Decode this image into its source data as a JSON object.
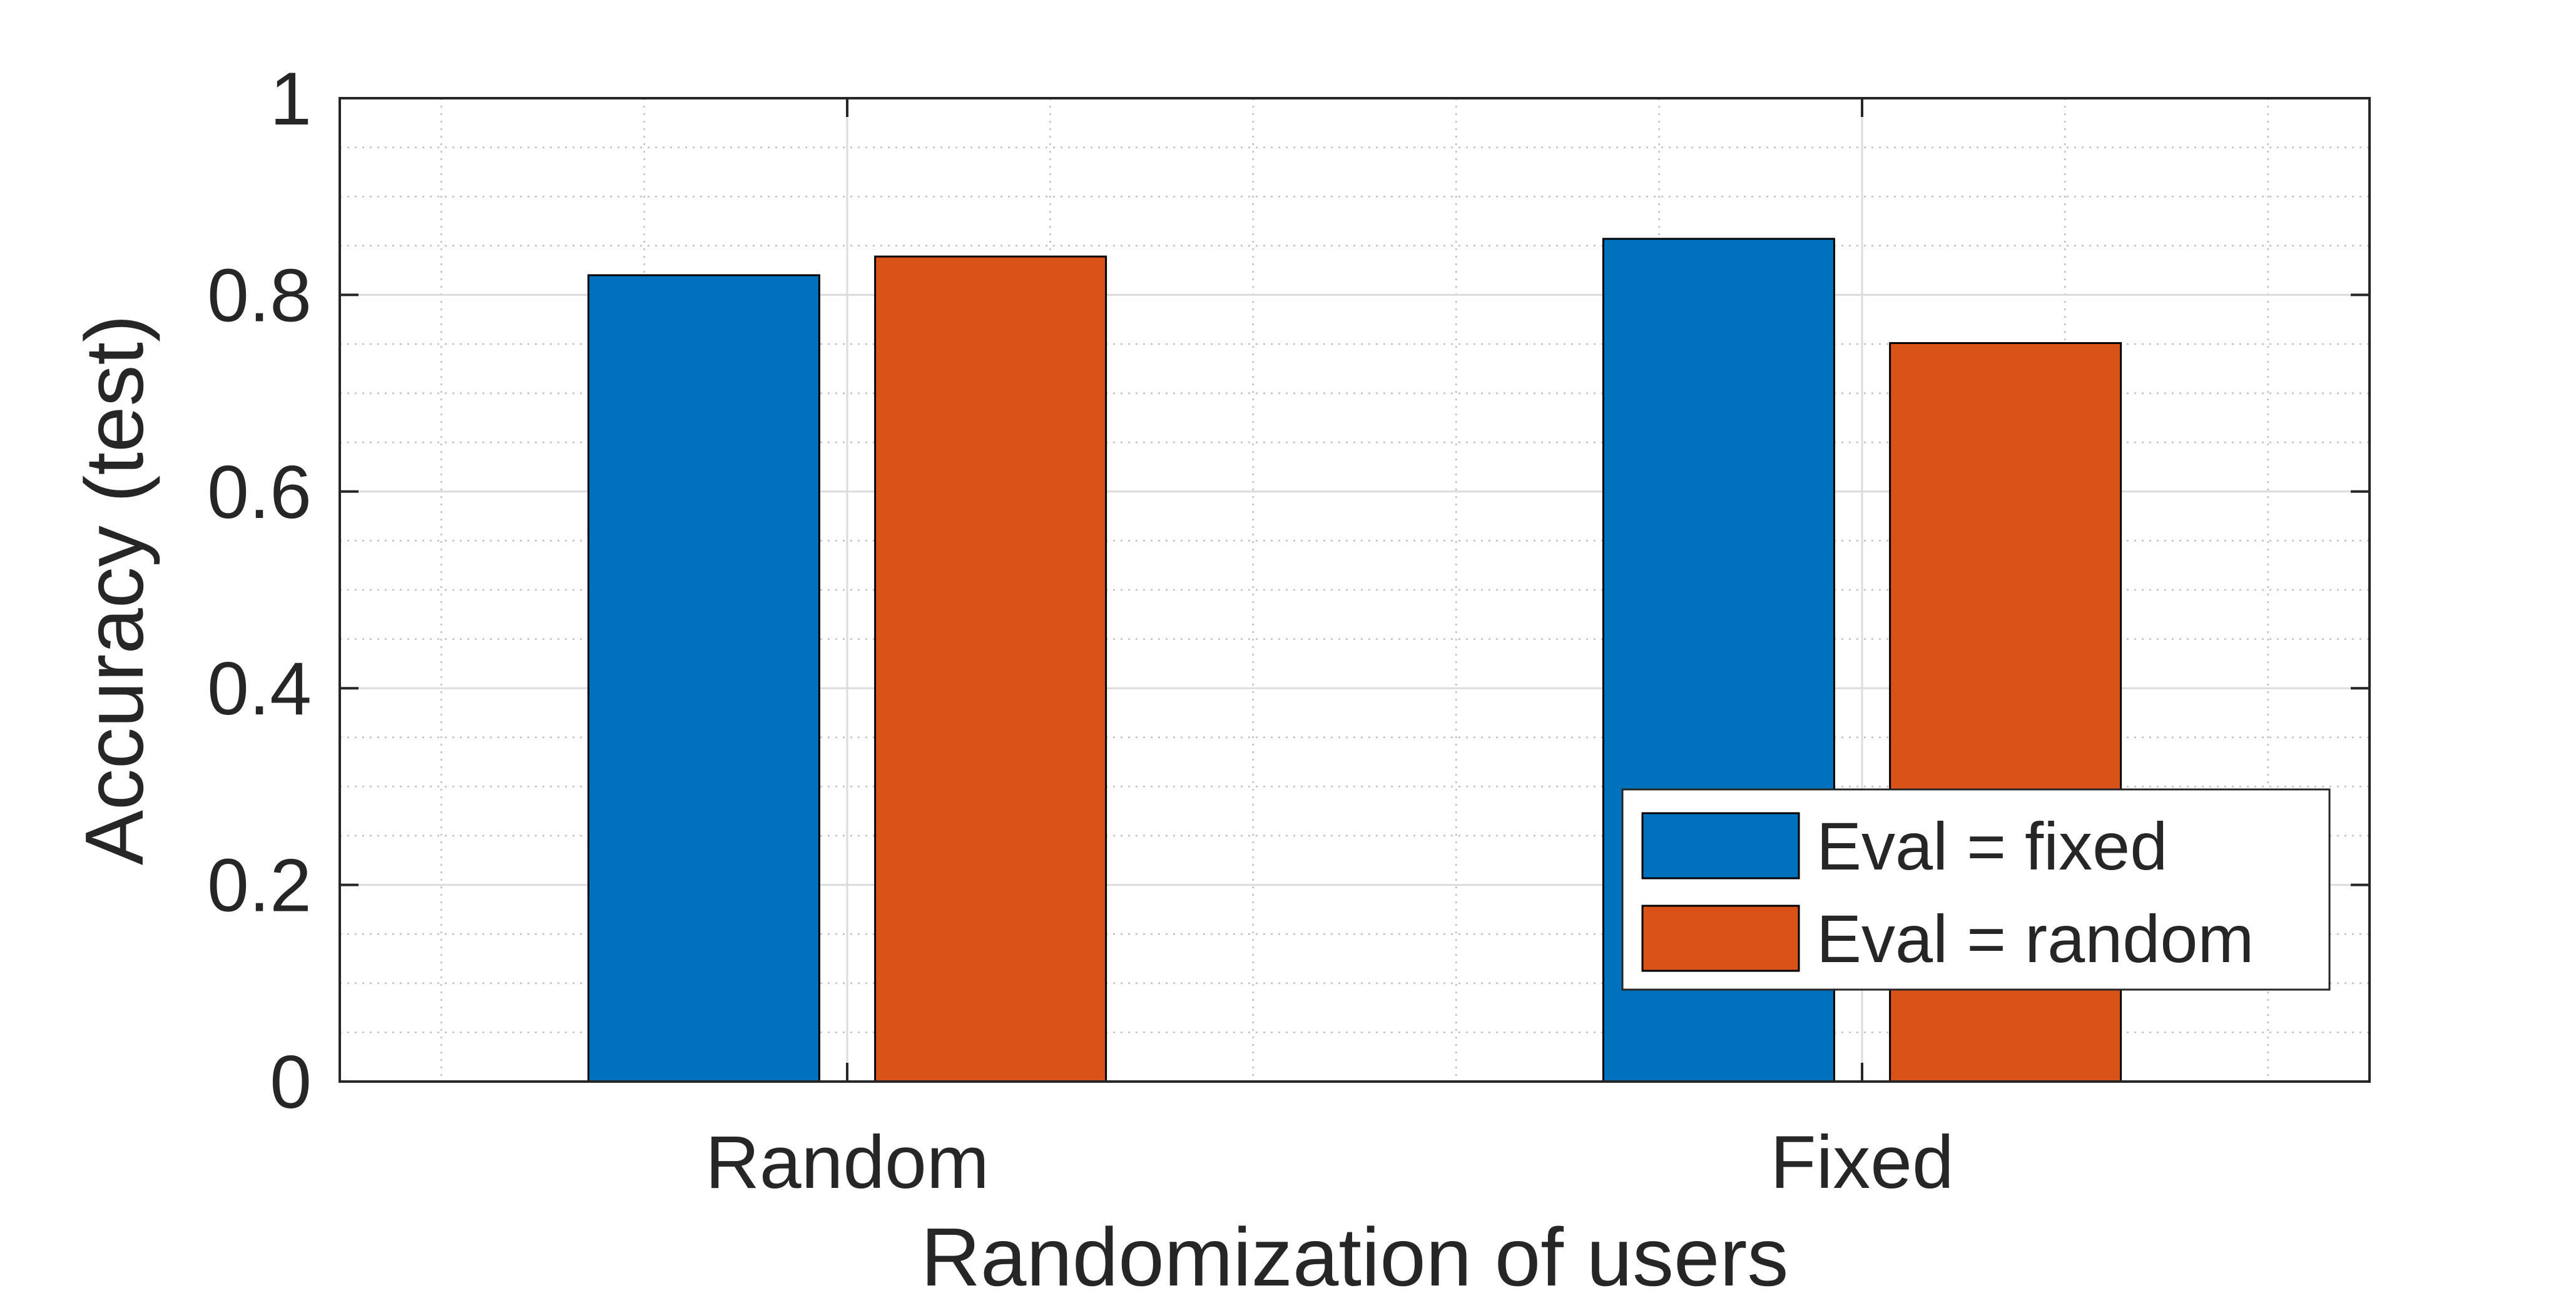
{
  "chart_data": {
    "type": "bar",
    "title": "",
    "xlabel": "Randomization of users",
    "ylabel": "Accuracy (test)",
    "categories": [
      "Random",
      "Fixed"
    ],
    "series": [
      {
        "name": "Eval = fixed",
        "values": [
          0.82,
          0.857
        ],
        "color": "#0072BD"
      },
      {
        "name": "Eval = random",
        "values": [
          0.839,
          0.751
        ],
        "color": "#D95319"
      }
    ],
    "ylim": [
      0,
      1
    ],
    "yticks": [
      0,
      0.2,
      0.4,
      0.6,
      0.8,
      1
    ],
    "ytick_labels": [
      "0",
      "0.2",
      "0.4",
      "0.6",
      "0.8",
      "1"
    ],
    "grid": true,
    "minor_grid": true,
    "legend_position": "bottom-right"
  }
}
